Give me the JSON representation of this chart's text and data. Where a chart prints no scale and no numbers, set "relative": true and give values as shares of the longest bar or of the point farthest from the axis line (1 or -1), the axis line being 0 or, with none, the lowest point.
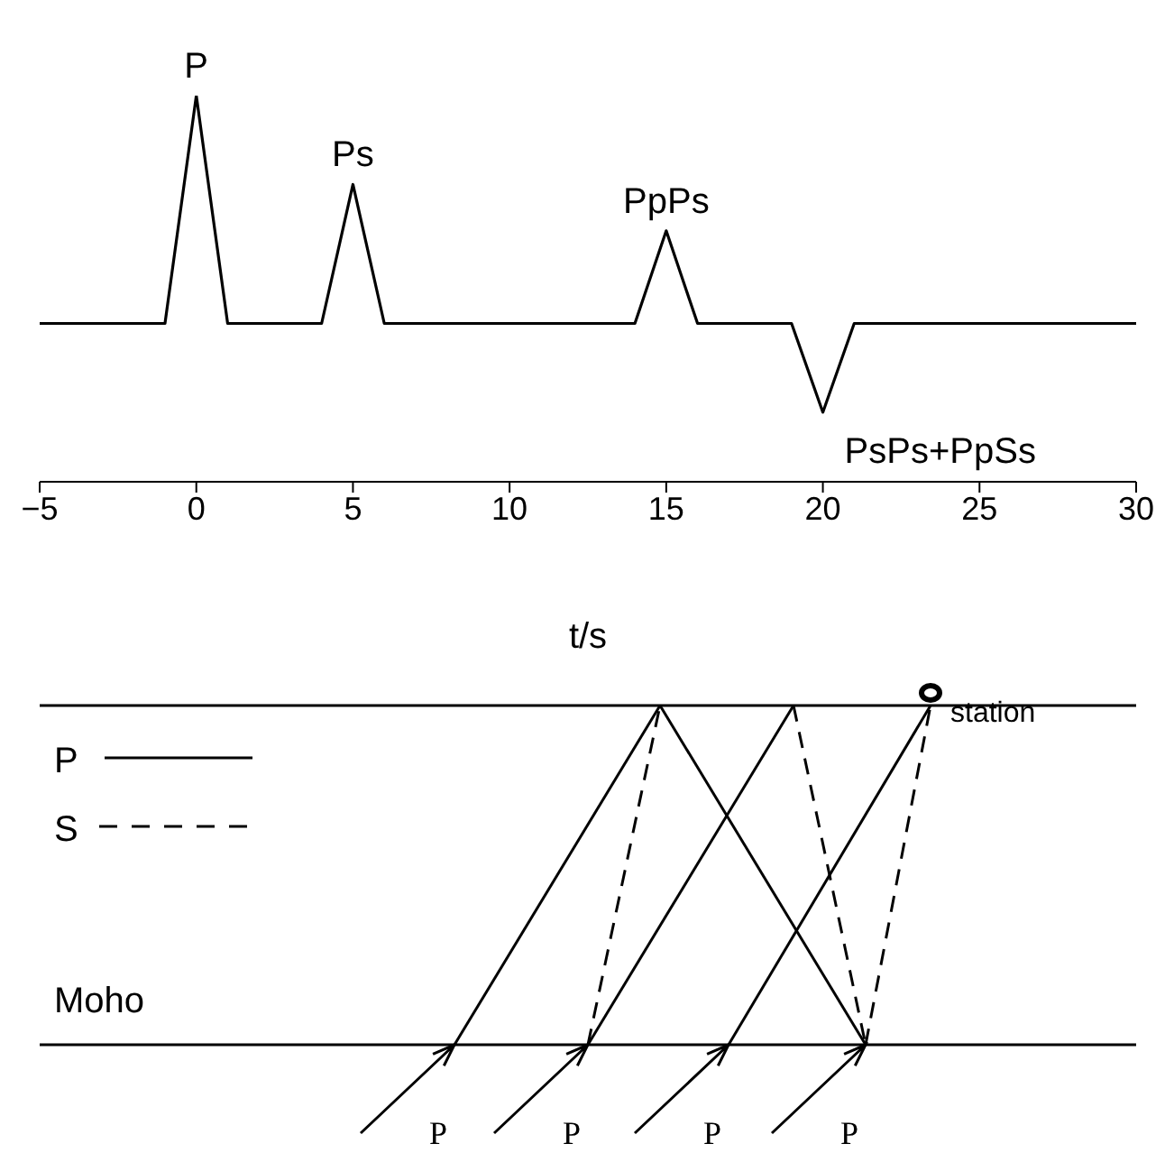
{
  "chart_data": [
    {
      "type": "line",
      "relative": true,
      "xlabel": "t/s",
      "x": [
        -5,
        -1,
        0,
        1,
        4,
        5,
        6,
        14,
        15,
        16,
        19,
        20,
        21,
        30
      ],
      "series": [
        {
          "color": "#000000",
          "values": [
            0.41,
            0.41,
            1,
            0.41,
            0.41,
            0.77,
            0.41,
            0.41,
            0.65,
            0.41,
            0.41,
            0.18,
            0.41,
            0.41
          ]
        }
      ],
      "xlim": [
        -5,
        30
      ],
      "xticks": [
        -5,
        0,
        5,
        10,
        15,
        20,
        25,
        30
      ],
      "tick_labels": "x",
      "marker": "none",
      "line_style": "solid",
      "annotations": [
        {
          "text": "P",
          "x": 0,
          "y": 1
        },
        {
          "text": "Ps",
          "x": 5,
          "y": 0.77
        },
        {
          "text": "PpPs",
          "x": 15,
          "y": 0.65
        },
        {
          "text": "PsPs+PpSs",
          "x": 20,
          "y": 0.18
        }
      ]
    },
    {
      "type": "other",
      "annotations": [
        "station",
        "P",
        "S",
        "Moho",
        "P",
        "P",
        "P",
        "P"
      ]
    }
  ]
}
